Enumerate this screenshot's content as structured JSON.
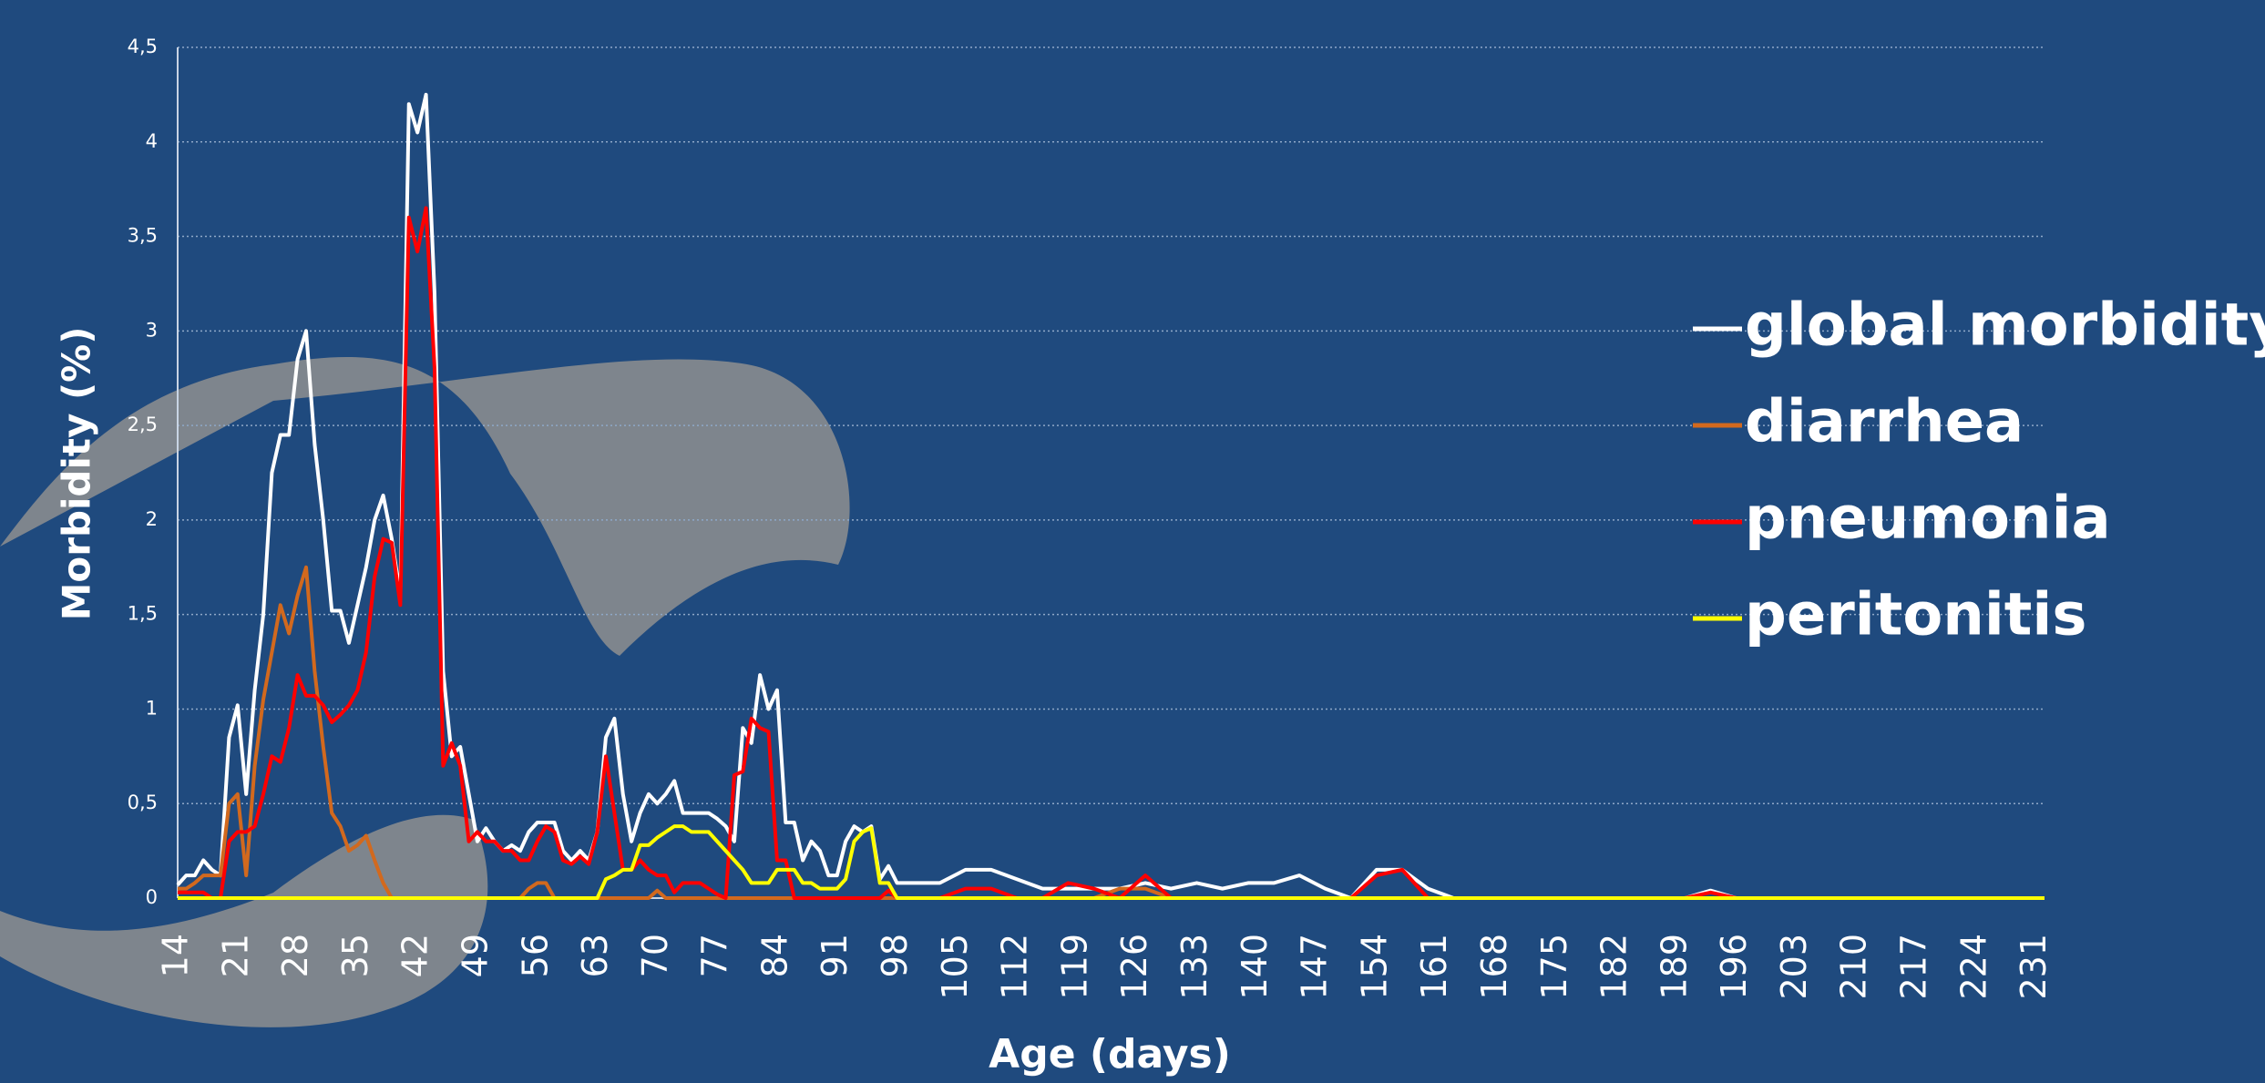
{
  "chart_data": {
    "type": "line",
    "x_label": "Age (days)",
    "y_label": "Morbidity (%)",
    "x": [
      14,
      15,
      16,
      17,
      18,
      19,
      20,
      21,
      22,
      23,
      24,
      25,
      26,
      27,
      28,
      29,
      30,
      31,
      32,
      33,
      34,
      35,
      36,
      37,
      38,
      39,
      40,
      41,
      42,
      43,
      44,
      45,
      46,
      47,
      48,
      49,
      50,
      51,
      52,
      53,
      54,
      55,
      56,
      57,
      58,
      59,
      60,
      61,
      62,
      63,
      64,
      65,
      66,
      67,
      68,
      69,
      70,
      71,
      72,
      73,
      74,
      75,
      76,
      77,
      78,
      79,
      80,
      81,
      82,
      83,
      84,
      85,
      86,
      87,
      88,
      89,
      90,
      91,
      92,
      93,
      94,
      95,
      96,
      97,
      98,
      100,
      103,
      106,
      109,
      112,
      115,
      118,
      121,
      124,
      127,
      130,
      133,
      136,
      139,
      142,
      145,
      148,
      151,
      154,
      157,
      160,
      163,
      166,
      169,
      172,
      175,
      178,
      181,
      184,
      187,
      190,
      193,
      196,
      199,
      202,
      205,
      208,
      211,
      214,
      217,
      220,
      223,
      226,
      229,
      232
    ],
    "series": [
      {
        "name": "global morbidity",
        "color": "#ffffff",
        "values": [
          0.07,
          0.12,
          0.12,
          0.2,
          0.15,
          0.12,
          0.85,
          1.02,
          0.55,
          1.1,
          1.5,
          2.25,
          2.45,
          2.45,
          2.85,
          3.0,
          2.4,
          2.0,
          1.52,
          1.52,
          1.35,
          1.55,
          1.75,
          2.0,
          2.13,
          1.9,
          1.6,
          4.2,
          4.05,
          4.25,
          3.2,
          1.2,
          0.75,
          0.8,
          0.55,
          0.3,
          0.37,
          0.3,
          0.25,
          0.28,
          0.25,
          0.35,
          0.4,
          0.4,
          0.4,
          0.25,
          0.2,
          0.25,
          0.2,
          0.35,
          0.85,
          0.95,
          0.55,
          0.3,
          0.45,
          0.55,
          0.5,
          0.55,
          0.62,
          0.45,
          0.45,
          0.45,
          0.45,
          0.42,
          0.38,
          0.3,
          0.9,
          0.82,
          1.18,
          1.0,
          1.1,
          0.4,
          0.4,
          0.2,
          0.3,
          0.25,
          0.12,
          0.12,
          0.3,
          0.38,
          0.35,
          0.38,
          0.1,
          0.17,
          0.08,
          0.08,
          0.08,
          0.15,
          0.15,
          0.1,
          0.05,
          0.05,
          0.05,
          0.05,
          0.08,
          0.05,
          0.08,
          0.05,
          0.08,
          0.08,
          0.12,
          0.05,
          0,
          0.15,
          0.15,
          0.05,
          0,
          0,
          0,
          0,
          0,
          0,
          0,
          0,
          0,
          0,
          0.04,
          0,
          0,
          0,
          0,
          0,
          0,
          0,
          0,
          0,
          0,
          0,
          0,
          0
        ]
      },
      {
        "name": "diarrhea",
        "color": "#d2691e",
        "values": [
          0.05,
          0.05,
          0.08,
          0.12,
          0.12,
          0.12,
          0.5,
          0.55,
          0.12,
          0.7,
          1.05,
          1.3,
          1.55,
          1.4,
          1.6,
          1.75,
          1.2,
          0.8,
          0.45,
          0.38,
          0.25,
          0.28,
          0.33,
          0.2,
          0.08,
          0,
          0,
          0,
          0,
          0,
          0,
          0,
          0,
          0,
          0,
          0,
          0,
          0,
          0,
          0,
          0,
          0.05,
          0.08,
          0.08,
          0,
          0,
          0,
          0,
          0,
          0,
          0,
          0,
          0,
          0,
          0,
          0,
          0.04,
          0,
          0,
          0,
          0,
          0,
          0,
          0,
          0,
          0,
          0,
          0,
          0,
          0,
          0,
          0,
          0,
          0,
          0,
          0,
          0,
          0,
          0,
          0,
          0,
          0,
          0,
          0,
          0,
          0,
          0,
          0,
          0,
          0,
          0,
          0,
          0,
          0.05,
          0.05,
          0,
          0,
          0,
          0,
          0,
          0,
          0,
          0,
          0,
          0,
          0,
          0,
          0,
          0,
          0,
          0,
          0,
          0,
          0,
          0,
          0,
          0,
          0,
          0,
          0,
          0,
          0,
          0,
          0,
          0,
          0,
          0,
          0,
          0,
          0
        ]
      },
      {
        "name": "pneumonia",
        "color": "#ff0000",
        "values": [
          0.03,
          0.03,
          0.03,
          0.03,
          0,
          0,
          0.3,
          0.35,
          0.35,
          0.38,
          0.55,
          0.75,
          0.72,
          0.9,
          1.18,
          1.07,
          1.07,
          1.02,
          0.93,
          0.97,
          1.02,
          1.1,
          1.3,
          1.7,
          1.9,
          1.88,
          1.55,
          3.6,
          3.42,
          3.65,
          2.8,
          0.7,
          0.82,
          0.7,
          0.3,
          0.35,
          0.3,
          0.3,
          0.25,
          0.25,
          0.2,
          0.2,
          0.3,
          0.38,
          0.35,
          0.2,
          0.18,
          0.22,
          0.18,
          0.35,
          0.75,
          0.45,
          0.15,
          0.15,
          0.2,
          0.15,
          0.12,
          0.12,
          0.03,
          0.08,
          0.08,
          0.08,
          0.05,
          0.02,
          0,
          0.65,
          0.67,
          0.95,
          0.9,
          0.88,
          0.2,
          0.2,
          0,
          0,
          0,
          0,
          0,
          0,
          0,
          0,
          0,
          0,
          0,
          0.04,
          0,
          0,
          0,
          0.05,
          0.05,
          0,
          0,
          0.08,
          0.05,
          0,
          0.12,
          0,
          0,
          0,
          0,
          0,
          0,
          0,
          0,
          0.12,
          0.15,
          0,
          0,
          0,
          0,
          0,
          0,
          0,
          0,
          0,
          0,
          0,
          0.03,
          0,
          0,
          0,
          0,
          0,
          0,
          0,
          0,
          0,
          0,
          0,
          0,
          0
        ]
      },
      {
        "name": "peritonitis",
        "color": "#ffff00",
        "values": [
          0,
          0,
          0,
          0,
          0,
          0,
          0,
          0,
          0,
          0,
          0,
          0,
          0,
          0,
          0,
          0,
          0,
          0,
          0,
          0,
          0,
          0,
          0,
          0,
          0,
          0,
          0,
          0,
          0,
          0,
          0,
          0,
          0,
          0,
          0,
          0,
          0,
          0,
          0,
          0,
          0,
          0,
          0,
          0,
          0,
          0,
          0,
          0,
          0,
          0,
          0.1,
          0.12,
          0.15,
          0.15,
          0.28,
          0.28,
          0.32,
          0.35,
          0.38,
          0.38,
          0.35,
          0.35,
          0.35,
          0.3,
          0.25,
          0.2,
          0.15,
          0.08,
          0.08,
          0.08,
          0.15,
          0.15,
          0.15,
          0.08,
          0.08,
          0.05,
          0.05,
          0.05,
          0.1,
          0.3,
          0.35,
          0.37,
          0.08,
          0.08,
          0,
          0,
          0,
          0,
          0,
          0,
          0,
          0,
          0,
          0,
          0,
          0,
          0,
          0,
          0,
          0,
          0,
          0,
          0,
          0,
          0,
          0,
          0,
          0,
          0,
          0,
          0,
          0,
          0,
          0,
          0,
          0,
          0,
          0,
          0,
          0,
          0,
          0,
          0,
          0,
          0,
          0,
          0,
          0,
          0,
          0
        ]
      }
    ],
    "xlim": [
      14,
      232
    ],
    "xticks": [
      14,
      21,
      28,
      35,
      42,
      49,
      56,
      63,
      70,
      77,
      84,
      91,
      98,
      105,
      112,
      119,
      126,
      133,
      140,
      147,
      154,
      161,
      168,
      175,
      182,
      189,
      196,
      203,
      210,
      217,
      224,
      231
    ],
    "ylim": [
      0,
      4.5
    ],
    "yticks": [
      0,
      {
        "value": 0.5,
        "label": "0,5"
      },
      1,
      {
        "value": 1.5,
        "label": "1,5"
      },
      2,
      {
        "value": 2.5,
        "label": "2,5"
      },
      3,
      {
        "value": 3.5,
        "label": "3,5"
      },
      4,
      {
        "value": 4.5,
        "label": "4,5"
      }
    ],
    "grid": true,
    "legend": "right"
  }
}
